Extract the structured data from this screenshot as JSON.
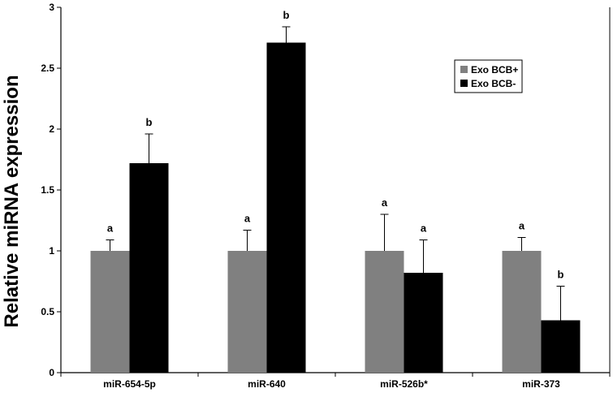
{
  "chart_data": {
    "type": "bar",
    "title": "",
    "xlabel": "",
    "ylabel": "Relative miRNA expression",
    "ylim": [
      0,
      3
    ],
    "yticks": [
      "0",
      "0.5",
      "1",
      "1.5",
      "2",
      "2.5",
      "3"
    ],
    "ytick_values": [
      0,
      0.5,
      1,
      1.5,
      2,
      2.5,
      3
    ],
    "categories": [
      "miR-654-5p",
      "miR-640",
      "miR-526b*",
      "miR-373"
    ],
    "series": [
      {
        "name": "Exo BCB+",
        "color": "#808080",
        "values": [
          1.0,
          1.0,
          1.0,
          1.0
        ],
        "errors": [
          0.09,
          0.17,
          0.3,
          0.11
        ],
        "significance": [
          "a",
          "a",
          "a",
          "a"
        ]
      },
      {
        "name": "Exo BCB-",
        "color": "#000000",
        "values": [
          1.72,
          2.71,
          0.82,
          0.43
        ],
        "errors": [
          0.24,
          0.13,
          0.27,
          0.28
        ],
        "significance": [
          "b",
          "b",
          "a",
          "b"
        ]
      }
    ],
    "grid": false,
    "legend_position": "top-right"
  }
}
